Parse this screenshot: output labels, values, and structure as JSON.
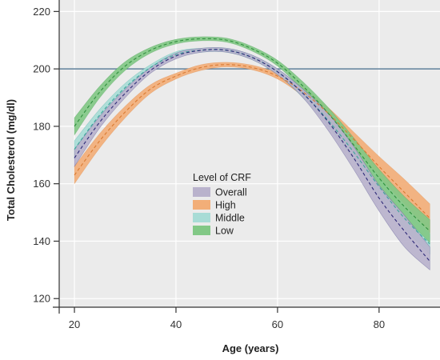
{
  "chart_data": {
    "type": "area",
    "title": "",
    "xlabel": "Age (years)",
    "ylabel": "Total Cholesterol (mg/dl)",
    "xlim": [
      17,
      92
    ],
    "ylim": [
      117,
      224
    ],
    "x_ticks": [
      20,
      40,
      60,
      80
    ],
    "y_ticks": [
      120,
      140,
      160,
      180,
      200,
      220
    ],
    "reference_line": {
      "y": 200,
      "color": "#5f7f9a"
    },
    "grid": true,
    "legend": {
      "title": "Level of CRF",
      "placement": "center"
    },
    "x": [
      20,
      25,
      30,
      35,
      40,
      45,
      50,
      55,
      60,
      65,
      70,
      75,
      80,
      85,
      90
    ],
    "series": [
      {
        "name": "Overall",
        "color": "#b9b2cc",
        "line_color": "#2e2a78",
        "mean": [
          169,
          181.5,
          191.5,
          199.5,
          204.5,
          206.5,
          206.5,
          204,
          199,
          191.5,
          181.5,
          169,
          155,
          143.5,
          133
        ],
        "lower": [
          166,
          179.5,
          190,
          198.5,
          203.5,
          205.8,
          205.8,
          203.2,
          198,
          190,
          178.5,
          165,
          150.5,
          138,
          130
        ],
        "upper": [
          172,
          183.5,
          193,
          200.5,
          205.5,
          207.2,
          207.2,
          204.8,
          200,
          193,
          184.5,
          173,
          159.5,
          149,
          138
        ]
      },
      {
        "name": "High",
        "color": "#f2ae78",
        "line_color": "#d97a32",
        "mean": [
          163,
          175,
          185,
          193,
          197.5,
          200.5,
          201.5,
          200.5,
          197.5,
          192,
          184.5,
          175.5,
          166,
          157,
          148
        ],
        "lower": [
          160,
          172.5,
          183,
          191.5,
          196.5,
          199.5,
          200.7,
          199.7,
          196.5,
          190.5,
          182.5,
          173,
          162.5,
          153,
          143
        ],
        "upper": [
          166,
          177.5,
          187,
          194.5,
          198.5,
          201.5,
          202.3,
          201.3,
          198.5,
          193.5,
          186.5,
          178,
          169.5,
          161.5,
          153
        ]
      },
      {
        "name": "Middle",
        "color": "#a8dcd6",
        "line_color": "#3aa59a",
        "mean": [
          172,
          184,
          193.5,
          200.5,
          205,
          206.5,
          206.5,
          204,
          199,
          191.5,
          182,
          171,
          159,
          148,
          139
        ],
        "lower": [
          169,
          182,
          192,
          199.5,
          204,
          205.8,
          205.8,
          203.2,
          198,
          190,
          180,
          168.5,
          155.5,
          144.5,
          135.5
        ],
        "upper": [
          175,
          186,
          195,
          201.5,
          206,
          207.2,
          207.2,
          204.8,
          200,
          193,
          184,
          173.5,
          162.5,
          151.5,
          142.5
        ]
      },
      {
        "name": "Low",
        "color": "#82c886",
        "line_color": "#2f8f3d",
        "mean": [
          180,
          192,
          201,
          206.5,
          209.5,
          210.5,
          210,
          207,
          202,
          194,
          184.5,
          173.5,
          162,
          152,
          143.5
        ],
        "lower": [
          177,
          190,
          199.5,
          205.5,
          208.7,
          209.8,
          209.3,
          206.2,
          201,
          192.5,
          182.5,
          171,
          159,
          148.5,
          139.5
        ],
        "upper": [
          183,
          194,
          202.5,
          207.5,
          210.3,
          211.2,
          210.7,
          207.8,
          203,
          195.5,
          186.5,
          176,
          165,
          155.5,
          147.5
        ]
      }
    ]
  }
}
